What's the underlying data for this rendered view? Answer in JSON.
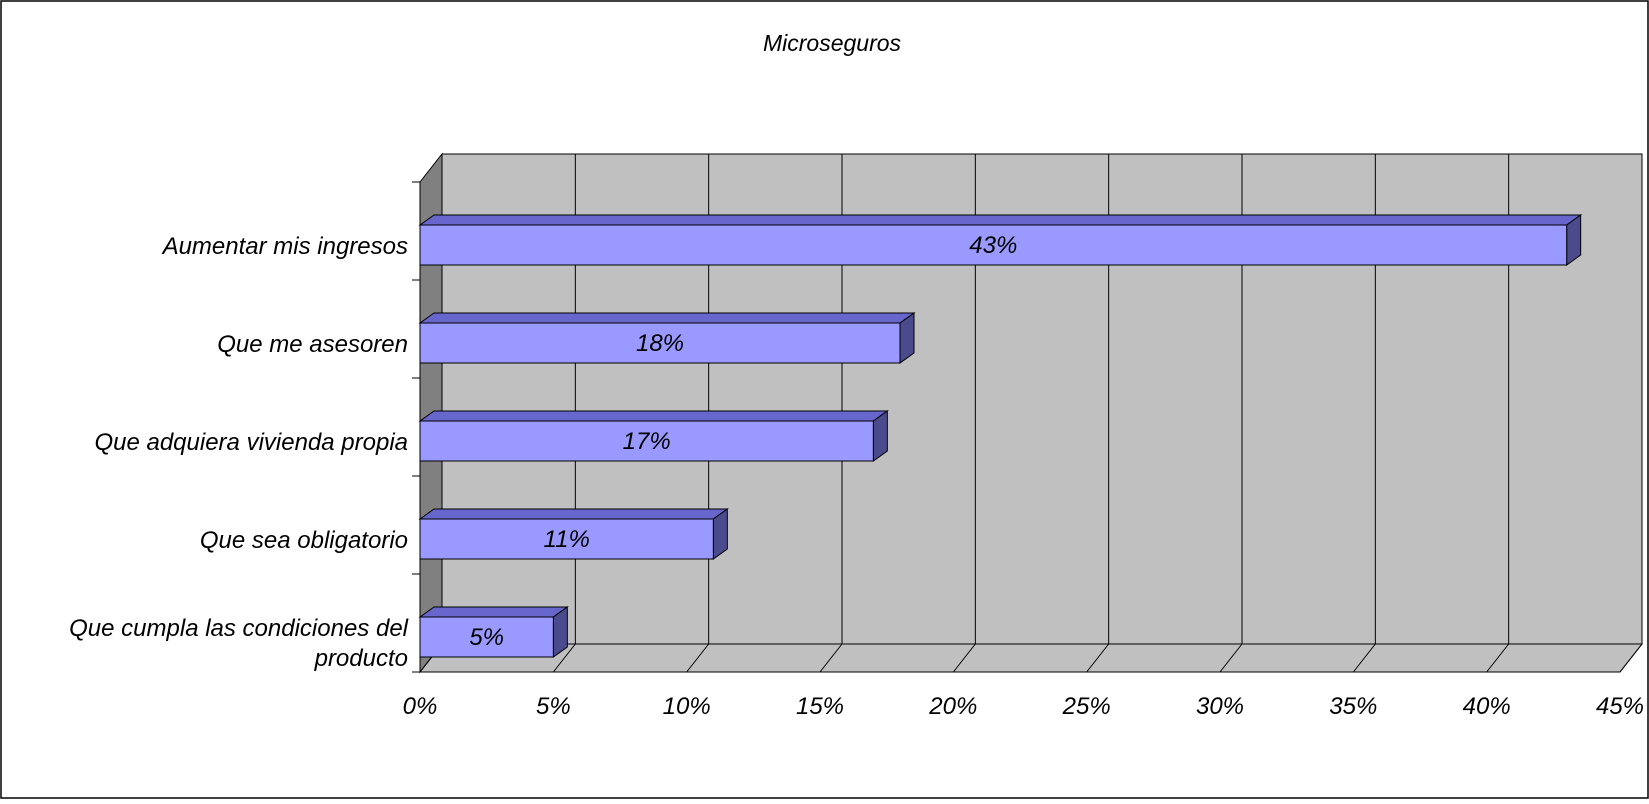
{
  "chart_data": {
    "type": "bar",
    "orientation": "horizontal",
    "style": "3d",
    "title": "Microseguros",
    "categories": [
      "Aumentar mis ingresos",
      "Que me asesoren",
      "Que adquiera vivienda propia",
      "Que sea obligatorio",
      "Que cumpla las condiciones del producto"
    ],
    "category_lines": [
      [
        "Aumentar mis ingresos"
      ],
      [
        "Que me asesoren"
      ],
      [
        "Que adquiera vivienda propia"
      ],
      [
        "Que sea obligatorio"
      ],
      [
        "Que cumpla las condiciones del",
        "producto"
      ]
    ],
    "values": [
      43,
      18,
      17,
      11,
      5
    ],
    "data_labels": [
      "43%",
      "18%",
      "17%",
      "11%",
      "5%"
    ],
    "x_ticks": [
      0,
      5,
      10,
      15,
      20,
      25,
      30,
      35,
      40,
      45
    ],
    "x_tick_labels": [
      "0%",
      "5%",
      "10%",
      "15%",
      "20%",
      "25%",
      "30%",
      "35%",
      "40%",
      "45%"
    ],
    "xlim": [
      0,
      45
    ],
    "xlabel": "",
    "ylabel": "",
    "grid": true,
    "legend": "none",
    "colors": {
      "bar_front": "#9999ff",
      "bar_top": "#6666cc",
      "bar_side": "#4a4a8c",
      "plot_back_wall": "#c0c0c0",
      "plot_side_wall": "#808080",
      "plot_floor": "#c0c0c0",
      "border": "#000000"
    }
  }
}
